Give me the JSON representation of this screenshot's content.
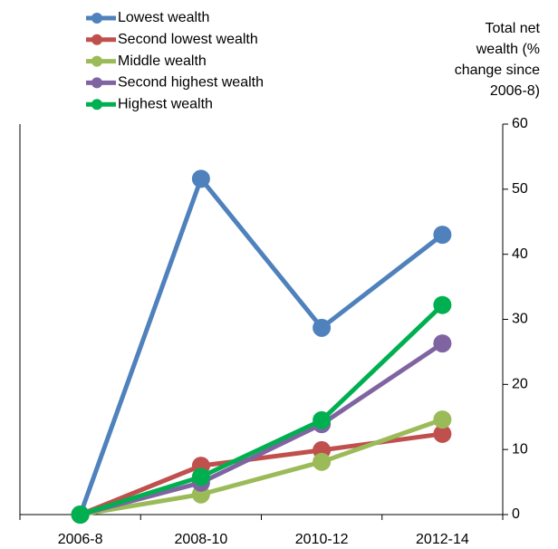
{
  "chart_data": {
    "type": "line",
    "ylabel_lines": [
      "Total net",
      "wealth (%",
      "change since",
      "2006-8)"
    ],
    "categories": [
      "2006-8",
      "2008-10",
      "2010-12",
      "2012-14"
    ],
    "series": [
      {
        "name": "Lowest wealth",
        "color": "#4f81bd",
        "values": [
          0,
          51.6,
          28.7,
          43.0
        ]
      },
      {
        "name": "Second lowest wealth",
        "color": "#c0504d",
        "values": [
          0,
          7.5,
          9.9,
          12.4
        ]
      },
      {
        "name": "Middle wealth",
        "color": "#9bbb59",
        "values": [
          0,
          3.1,
          8.1,
          14.6
        ]
      },
      {
        "name": "Second highest wealth",
        "color": "#8064a2",
        "values": [
          0,
          4.9,
          13.9,
          26.3
        ]
      },
      {
        "name": "Highest wealth",
        "color": "#00b050",
        "values": [
          0,
          5.8,
          14.5,
          32.2
        ]
      }
    ],
    "ylim": [
      0,
      60
    ],
    "yticks": [
      0,
      10,
      20,
      30,
      40,
      50,
      60
    ],
    "legend": "top-left"
  }
}
